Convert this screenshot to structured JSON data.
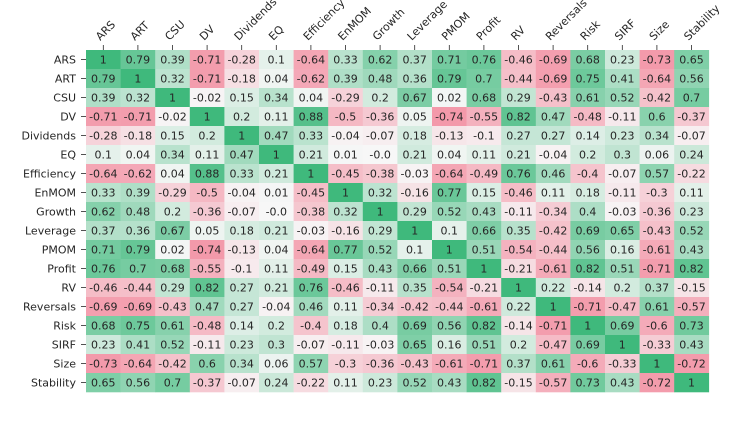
{
  "chart_data": {
    "type": "heatmap",
    "labels": [
      "ARS",
      "ART",
      "CSU",
      "DV",
      "Dividends",
      "EQ",
      "Efficiency",
      "EnMOM",
      "Growth",
      "Leverage",
      "PMOM",
      "Profit",
      "RV",
      "Reversals",
      "Risk",
      "SIRF",
      "Size",
      "Stability"
    ],
    "matrix": [
      [
        1.0,
        0.79,
        0.39,
        -0.71,
        -0.28,
        0.1,
        -0.64,
        0.33,
        0.62,
        0.37,
        0.71,
        0.76,
        -0.46,
        -0.69,
        0.68,
        0.23,
        -0.73,
        0.65
      ],
      [
        0.79,
        1.0,
        0.32,
        -0.71,
        -0.18,
        0.04,
        -0.62,
        0.39,
        0.48,
        0.36,
        0.79,
        0.7,
        -0.44,
        -0.69,
        0.75,
        0.41,
        -0.64,
        0.56
      ],
      [
        0.39,
        0.32,
        1.0,
        -0.02,
        0.15,
        0.34,
        0.04,
        -0.29,
        0.2,
        0.67,
        0.02,
        0.68,
        0.29,
        -0.43,
        0.61,
        0.52,
        -0.42,
        0.7
      ],
      [
        -0.71,
        -0.71,
        -0.02,
        1.0,
        0.2,
        0.11,
        0.88,
        -0.5,
        -0.36,
        0.05,
        -0.74,
        -0.55,
        0.82,
        0.47,
        -0.48,
        -0.11,
        0.6,
        -0.37
      ],
      [
        -0.28,
        -0.18,
        0.15,
        0.2,
        1.0,
        0.47,
        0.33,
        -0.04,
        -0.07,
        0.18,
        -0.13,
        -0.1,
        0.27,
        0.27,
        0.14,
        0.23,
        0.34,
        -0.07
      ],
      [
        0.1,
        0.04,
        0.34,
        0.11,
        0.47,
        1.0,
        0.21,
        0.01,
        "-0.0",
        0.21,
        0.04,
        0.11,
        0.21,
        -0.04,
        0.2,
        0.3,
        0.06,
        0.24
      ],
      [
        -0.64,
        -0.62,
        0.04,
        0.88,
        0.33,
        0.21,
        1.0,
        -0.45,
        -0.38,
        -0.03,
        -0.64,
        -0.49,
        0.76,
        0.46,
        -0.4,
        -0.07,
        0.57,
        -0.22
      ],
      [
        0.33,
        0.39,
        -0.29,
        -0.5,
        -0.04,
        0.01,
        -0.45,
        1.0,
        0.32,
        -0.16,
        0.77,
        0.15,
        -0.46,
        0.11,
        0.18,
        -0.11,
        -0.3,
        0.11
      ],
      [
        0.62,
        0.48,
        0.2,
        -0.36,
        -0.07,
        "-0.0",
        -0.38,
        0.32,
        1.0,
        0.29,
        0.52,
        0.43,
        -0.11,
        -0.34,
        0.4,
        -0.03,
        -0.36,
        0.23
      ],
      [
        0.37,
        0.36,
        0.67,
        0.05,
        0.18,
        0.21,
        -0.03,
        -0.16,
        0.29,
        1.0,
        0.1,
        0.66,
        0.35,
        -0.42,
        0.69,
        0.65,
        -0.43,
        0.52
      ],
      [
        0.71,
        0.79,
        0.02,
        -0.74,
        -0.13,
        0.04,
        -0.64,
        0.77,
        0.52,
        0.1,
        1.0,
        0.51,
        -0.54,
        -0.44,
        0.56,
        0.16,
        -0.61,
        0.43
      ],
      [
        0.76,
        0.7,
        0.68,
        -0.55,
        -0.1,
        0.11,
        -0.49,
        0.15,
        0.43,
        0.66,
        0.51,
        1.0,
        -0.21,
        -0.61,
        0.82,
        0.51,
        -0.71,
        0.82
      ],
      [
        -0.46,
        -0.44,
        0.29,
        0.82,
        0.27,
        0.21,
        0.76,
        -0.46,
        -0.11,
        0.35,
        -0.54,
        -0.21,
        1.0,
        0.22,
        -0.14,
        0.2,
        0.37,
        -0.15
      ],
      [
        -0.69,
        -0.69,
        -0.43,
        0.47,
        0.27,
        -0.04,
        0.46,
        0.11,
        -0.34,
        -0.42,
        -0.44,
        -0.61,
        0.22,
        1.0,
        -0.71,
        -0.47,
        0.61,
        -0.57
      ],
      [
        0.68,
        0.75,
        0.61,
        -0.48,
        0.14,
        0.2,
        -0.4,
        0.18,
        0.4,
        0.69,
        0.56,
        0.82,
        -0.14,
        -0.71,
        1.0,
        0.69,
        -0.6,
        0.73
      ],
      [
        0.23,
        0.41,
        0.52,
        -0.11,
        0.23,
        0.3,
        -0.07,
        -0.11,
        -0.03,
        0.65,
        0.16,
        0.51,
        0.2,
        -0.47,
        0.69,
        1.0,
        -0.33,
        0.43
      ],
      [
        -0.73,
        -0.64,
        -0.42,
        0.6,
        0.34,
        0.06,
        0.57,
        -0.3,
        -0.36,
        -0.43,
        -0.61,
        -0.71,
        0.37,
        0.61,
        -0.6,
        -0.33,
        1.0,
        -0.72
      ],
      [
        0.65,
        0.56,
        0.7,
        -0.37,
        -0.07,
        0.24,
        -0.22,
        0.11,
        0.23,
        0.52,
        0.43,
        0.82,
        -0.15,
        -0.57,
        0.73,
        0.43,
        -0.72,
        1.0
      ]
    ],
    "value_range": [
      -1,
      1
    ],
    "colors": {
      "negative": "#f2788f",
      "neutral": "#f7f7f7",
      "positive": "#3fb97c",
      "text": "#262626"
    },
    "x_tick_position": "top",
    "x_tick_rotation": "diagonal",
    "grid": false,
    "legend": false
  }
}
